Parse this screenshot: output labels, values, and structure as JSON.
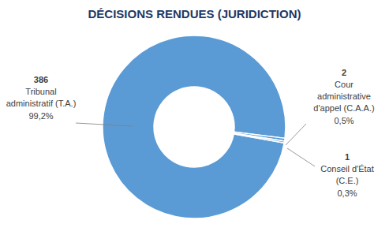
{
  "chart_data": {
    "type": "donut",
    "title": "DÉCISIONS RENDUES (JURIDICTION)",
    "categories": [
      "Tribunal\nadministratif (T.A.)",
      "Cour\nadministrative\nd'appel (C.A.A.)",
      "Conseil d'État\n(C.E.)"
    ],
    "values": [
      99.2,
      0.5,
      0.3
    ],
    "value_labels": [
      "99,2%",
      "0,5%",
      "0,3%"
    ],
    "counts": [
      386,
      2,
      1
    ],
    "color": "#5b9bd5",
    "data_labels": true
  }
}
